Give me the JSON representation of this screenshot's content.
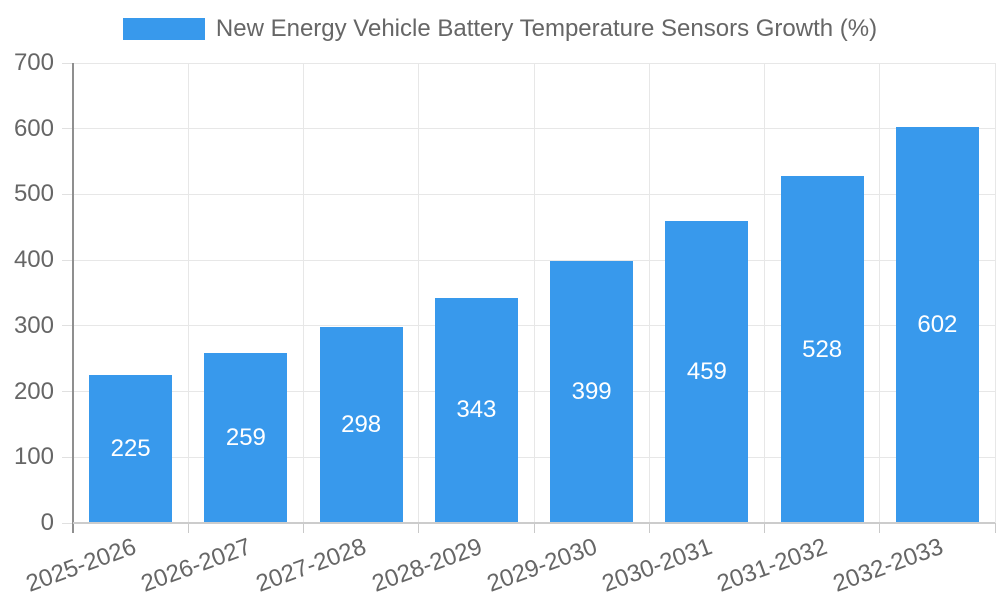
{
  "legend": {
    "label": "New Energy Vehicle Battery Temperature Sensors Growth (%)"
  },
  "chart_data": {
    "type": "bar",
    "title": "",
    "xlabel": "",
    "ylabel": "",
    "categories": [
      "2025-2026",
      "2026-2027",
      "2027-2028",
      "2028-2029",
      "2029-2030",
      "2030-2031",
      "2031-2032",
      "2032-2033"
    ],
    "values": [
      225,
      259,
      298,
      343,
      399,
      459,
      528,
      602
    ],
    "series": [
      {
        "name": "New Energy Vehicle Battery Temperature Sensors Growth (%)",
        "values": [
          225,
          259,
          298,
          343,
          399,
          459,
          528,
          602
        ]
      }
    ],
    "ylim": [
      0,
      700
    ],
    "ytick_step": 100,
    "yticks": [
      0,
      100,
      200,
      300,
      400,
      500,
      600,
      700
    ],
    "grid": true,
    "legend_position": "top",
    "bar_labels_inside": true,
    "colors": {
      "bar": "#3899ec",
      "bar_label": "#ffffff",
      "axis_text": "#666666",
      "gridline": "#e7e7e7",
      "y_axis_line": "#8f8f8f",
      "x_axis_line": "#cccccc"
    }
  }
}
